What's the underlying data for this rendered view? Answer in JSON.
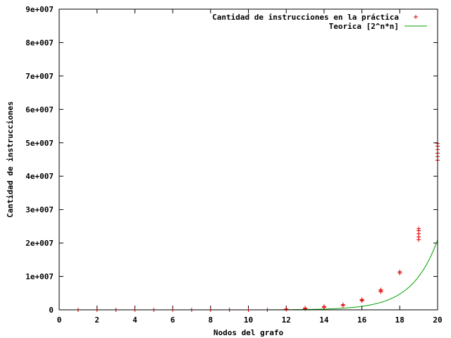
{
  "chart_data": {
    "type": "scatter",
    "title": "",
    "xlabel": "Nodos del grafo",
    "ylabel": "Cantidad de instrucciones",
    "xlim": [
      0,
      20
    ],
    "ylim": [
      0,
      90000000
    ],
    "x_ticks": [
      "0",
      "2",
      "4",
      "6",
      "8",
      "10",
      "12",
      "14",
      "16",
      "18",
      "20"
    ],
    "y_ticks": [
      "0",
      "1e+007",
      "2e+007",
      "3e+007",
      "4e+007",
      "5e+007",
      "6e+007",
      "7e+007",
      "8e+007",
      "9e+007"
    ],
    "grid": false,
    "legend_position": "top-right",
    "series": [
      {
        "name": "Cantidad de instrucciones en la práctica",
        "kind": "points",
        "marker": "plus",
        "color": "#e00000",
        "x": [
          1,
          2,
          3,
          4,
          5,
          6,
          7,
          8,
          9,
          10,
          11,
          12,
          12,
          13,
          13,
          14,
          14,
          15,
          15,
          16,
          16,
          16,
          17,
          17,
          17,
          18,
          18,
          19,
          19,
          19,
          19,
          19,
          20,
          20,
          20,
          20,
          20,
          20
        ],
        "y": [
          0,
          0,
          0,
          0,
          0,
          0,
          0,
          0,
          0,
          0,
          0,
          150000,
          250000,
          350000,
          550000,
          750000,
          1000000,
          1300000,
          1550000,
          2700000,
          2900000,
          3100000,
          5400000,
          5700000,
          6000000,
          11000000,
          11400000,
          21000000,
          21800000,
          22800000,
          23700000,
          24300000,
          44800000,
          45900000,
          46900000,
          48000000,
          49000000,
          49800000
        ]
      },
      {
        "name": "Teorica [2^n*n]",
        "kind": "line",
        "color": "#00a000",
        "formula": "2^n*n",
        "x_range": [
          11,
          20
        ]
      }
    ]
  }
}
